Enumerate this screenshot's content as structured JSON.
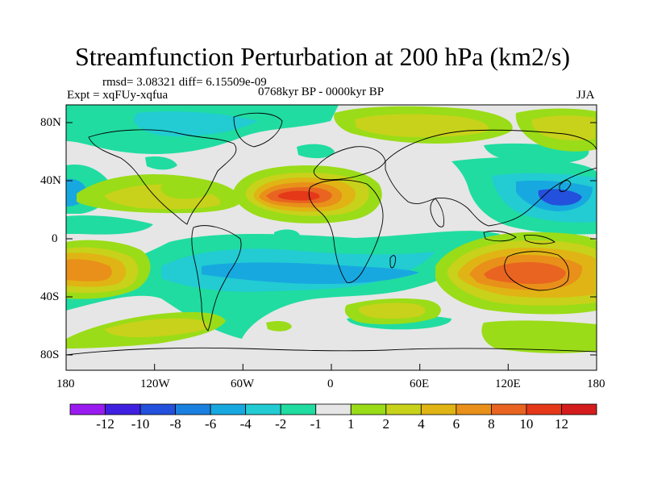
{
  "header": {
    "title": "Streamfunction Perturbation at 200 hPa (km2/s)",
    "stats": "rmsd= 3.08321 diff= 6.15509e-09",
    "experiment": "Expt = xqFUy-xqfua",
    "period": "0768kyr BP - 0000kyr BP",
    "season": "JJA"
  },
  "axes": {
    "lat_labels": [
      "80N",
      "40N",
      "0",
      "40S",
      "80S"
    ],
    "lon_labels": [
      "180",
      "120W",
      "60W",
      "0",
      "60E",
      "120E",
      "180"
    ]
  },
  "colorbar": {
    "labels": [
      "-12",
      "-10",
      "-8",
      "-6",
      "-4",
      "-2",
      "-1",
      "1",
      "2",
      "4",
      "6",
      "8",
      "10",
      "12"
    ],
    "colors": [
      "#9a1bef",
      "#4020e0",
      "#2350dc",
      "#1a80e0",
      "#18a8e0",
      "#22ccd2",
      "#20dca0",
      "#e6e6e6",
      "#9adc18",
      "#c8d21a",
      "#e0b414",
      "#e8901a",
      "#e86420",
      "#e43818",
      "#d41c1c"
    ]
  },
  "chart_data": {
    "type": "contour_map",
    "variable": "streamfunction perturbation",
    "units": "km2/s",
    "level_hPa": 200,
    "contour_levels": [
      -12,
      -10,
      -8,
      -6,
      -4,
      -2,
      -1,
      1,
      2,
      4,
      6,
      8,
      10,
      12
    ],
    "lon_range": [
      -180,
      180
    ],
    "lat_range": [
      -90,
      90
    ],
    "features": [
      {
        "label": "max",
        "lon": -25,
        "lat": 28,
        "value": 11
      },
      {
        "label": "max",
        "lon": 128,
        "lat": -30,
        "value": 9
      },
      {
        "label": "max",
        "lon": -160,
        "lat": -20,
        "value": 8
      },
      {
        "label": "min",
        "lon": 160,
        "lat": 35,
        "value": -9
      },
      {
        "label": "min",
        "lon": -5,
        "lat": -25,
        "value": -6
      },
      {
        "label": "min",
        "lon": -60,
        "lat": -18,
        "value": -5
      },
      {
        "label": "min",
        "lon": -178,
        "lat": 38,
        "value": -6
      }
    ]
  }
}
